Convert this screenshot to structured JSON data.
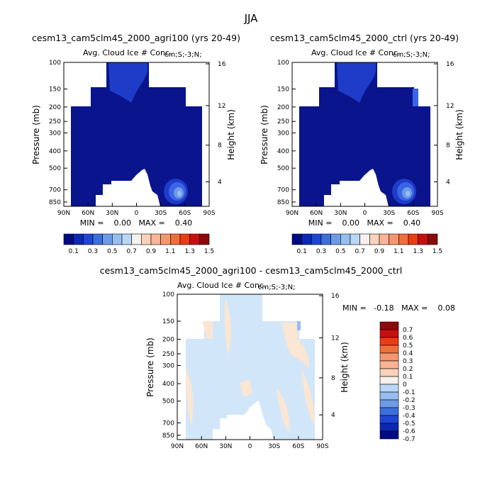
{
  "season": "JJA",
  "chart_data": [
    {
      "type": "heatmap",
      "title": "cesm13_cam5clm45_2000_agri100 (yrs 20-49)",
      "subtitle_left": "Avg. Cloud Ice # Conc.",
      "subtitle_right": "cm;S;-3;N;",
      "ylabel": "Pressure (mb)",
      "ylabel_right": "Height (km)",
      "x_ticks": [
        "90N",
        "60N",
        "30N",
        "0",
        "30S",
        "60S",
        "90S"
      ],
      "y_ticks": [
        "100",
        "150",
        "200",
        "250",
        "300",
        "400",
        "500",
        "700",
        "850"
      ],
      "y_ticks_right": [
        "16",
        "12",
        "8",
        "4"
      ],
      "min_label": "MIN =    0.00   MAX =    0.40",
      "colorbar_labels": [
        "0.1",
        "0.3",
        "0.5",
        "0.7",
        "0.9",
        "1.1",
        "1.3",
        "1.5"
      ]
    },
    {
      "type": "heatmap",
      "title": "cesm13_cam5clm45_2000_ctrl (yrs 20-49)",
      "subtitle_left": "Avg. Cloud Ice # Conc.",
      "subtitle_right": "cm;S;-3;N;",
      "ylabel": "Pressure (mb)",
      "ylabel_right": "Height (km)",
      "x_ticks": [
        "90N",
        "60N",
        "30N",
        "0",
        "30S",
        "60S",
        "90S"
      ],
      "y_ticks": [
        "100",
        "150",
        "200",
        "250",
        "300",
        "400",
        "500",
        "700",
        "850"
      ],
      "y_ticks_right": [
        "16",
        "12",
        "8",
        "4"
      ],
      "min_label": "MIN =    0.00   MAX =    0.40",
      "colorbar_labels": [
        "0.1",
        "0.3",
        "0.5",
        "0.7",
        "0.9",
        "1.1",
        "1.3",
        "1.5"
      ]
    },
    {
      "type": "heatmap",
      "title": "cesm13_cam5clm45_2000_agri100 - cesm13_cam5clm45_2000_ctrl",
      "subtitle_left": "Avg. Cloud Ice # Conc.",
      "subtitle_right": "cm;S;-3;N;",
      "ylabel": "Pressure (mb)",
      "ylabel_right": "Height (km)",
      "x_ticks": [
        "90N",
        "60N",
        "30N",
        "0",
        "30S",
        "60S",
        "90S"
      ],
      "y_ticks": [
        "100",
        "150",
        "200",
        "250",
        "300",
        "400",
        "500",
        "700",
        "850"
      ],
      "y_ticks_right": [
        "16",
        "12",
        "8",
        "4"
      ],
      "min_label": "MIN =   -0.18   MAX =    0.08",
      "colorbar_labels": [
        "0.7",
        "0.6",
        "0.5",
        "0.4",
        "0.3",
        "0.2",
        "0.1",
        "0",
        "-0.1",
        "-0.2",
        "-0.3",
        "-0.4",
        "-0.5",
        "-0.6",
        "-0.7"
      ]
    }
  ],
  "colors": {
    "dark_blue": "#0a148c",
    "blue2": "#1e3cc8",
    "blue3": "#3c64e6",
    "light_blue": "#d2e6fa",
    "peach": "#fae6d2",
    "bar_top": "#8c0a0a",
    "diff_bar": [
      "#8c0a0a",
      "#c80f0f",
      "#eb3c14",
      "#f06e3c",
      "#f5966e",
      "#fab496",
      "#fad2b9",
      "#f5f0eb",
      "#b9d7f5",
      "#96bef0",
      "#6e9be6",
      "#3c6edc",
      "#1e46d2",
      "#0a28b4",
      "#000a82"
    ],
    "main_bar": [
      "#000a82",
      "#0a28b4",
      "#1e46d2",
      "#3c6edc",
      "#6e9be6",
      "#96bef0",
      "#b9d7f5",
      "#f5f0eb",
      "#fad2b9",
      "#fab496",
      "#f5966e",
      "#f06e3c",
      "#eb3c14",
      "#c80f0f",
      "#8c0a0a"
    ]
  }
}
